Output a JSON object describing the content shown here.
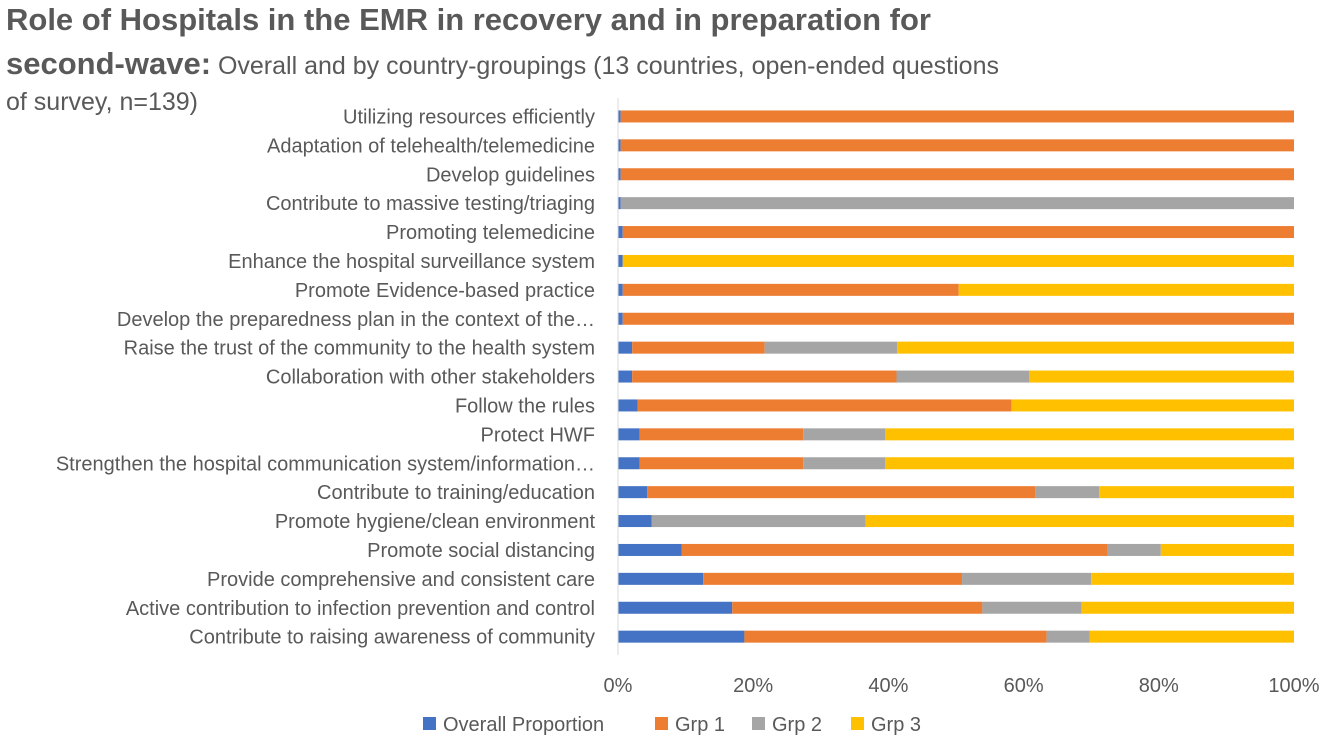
{
  "title": {
    "line1": "Role of Hospitals in the EMR in recovery and in preparation for",
    "line2_bold": "second-wave:",
    "line2_rest": " Overall and by country-groupings (13 countries, open-ended questions",
    "line3": "of survey, n=139)"
  },
  "chart_data": {
    "type": "bar",
    "orientation": "horizontal",
    "stacked": "percent",
    "categories": [
      "Utilizing resources efficiently",
      "Adaptation of telehealth/telemedicine",
      "Develop guidelines",
      "Contribute to massive testing/triaging",
      "Promoting telemedicine",
      "Enhance the hospital surveillance system",
      "Promote Evidence-based practice",
      "Develop the preparedness plan in the context of the…",
      "Raise the trust of the community to the health system",
      "Collaboration with other stakeholders",
      "Follow the rules",
      "Protect HWF",
      "Strengthen the hospital communication system/information…",
      "Contribute to training/education",
      "Promote hygiene/clean environment",
      "Promote social distancing",
      "Provide comprehensive and consistent care",
      "Active contribution to infection prevention and control",
      "Contribute to raising awareness of community"
    ],
    "series": [
      {
        "name": "Overall Proportion",
        "color": "#4472C4",
        "values": [
          0.4,
          0.4,
          0.4,
          0.4,
          0.7,
          0.7,
          0.7,
          0.7,
          2.1,
          2.1,
          2.9,
          3.2,
          3.2,
          4.3,
          5.0,
          9.4,
          12.6,
          16.9,
          18.7
        ]
      },
      {
        "name": "Grp 1",
        "color": "#ED7D31",
        "values": [
          99.6,
          99.6,
          99.6,
          0,
          99.3,
          0,
          49.7,
          99.3,
          19.6,
          39.1,
          55.3,
          24.2,
          24.2,
          57.4,
          0,
          63.0,
          38.3,
          37.0,
          44.7
        ]
      },
      {
        "name": "Grp 2",
        "color": "#A5A5A5",
        "values": [
          0,
          0,
          0,
          99.6,
          0,
          0,
          0,
          0,
          19.6,
          19.6,
          0,
          12.1,
          12.1,
          9.5,
          31.6,
          7.9,
          19.1,
          14.7,
          6.4
        ]
      },
      {
        "name": "Grp 3",
        "color": "#FFC000",
        "values": [
          0,
          0,
          0,
          0,
          0,
          99.3,
          49.6,
          0,
          58.7,
          39.2,
          41.8,
          60.5,
          60.5,
          28.8,
          63.4,
          19.7,
          30.0,
          31.4,
          30.2
        ]
      }
    ],
    "xlim": [
      0,
      100
    ],
    "xticks": [
      "0%",
      "20%",
      "40%",
      "60%",
      "80%",
      "100%"
    ],
    "grid": false,
    "legend": "bottom"
  }
}
